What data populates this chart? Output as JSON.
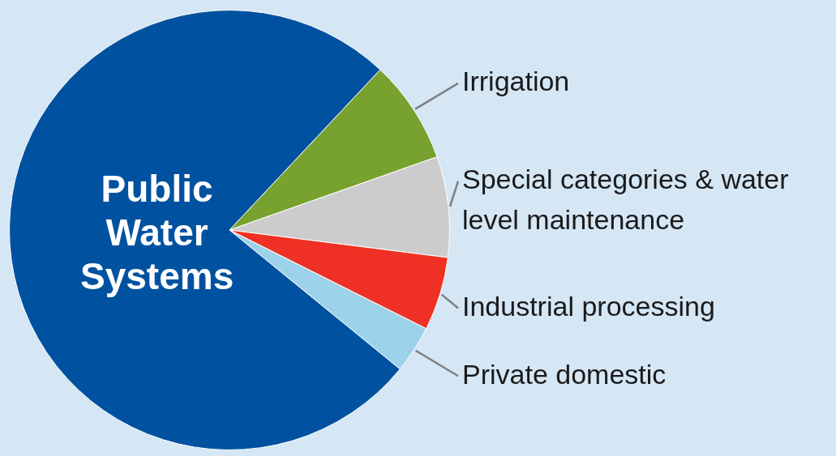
{
  "chart_data": {
    "type": "pie",
    "categories": [
      "Irrigation",
      "Special categories & water level maintenance",
      "Industrial processing",
      "Private domestic",
      "Public Water Systems"
    ],
    "values": [
      7.6,
      7.4,
      5.4,
      3.5,
      76.1
    ],
    "colors": [
      "#78a22f",
      "#cccccc",
      "#ee3124",
      "#9dd3ea",
      "#0052a0"
    ],
    "legend": false
  }
}
